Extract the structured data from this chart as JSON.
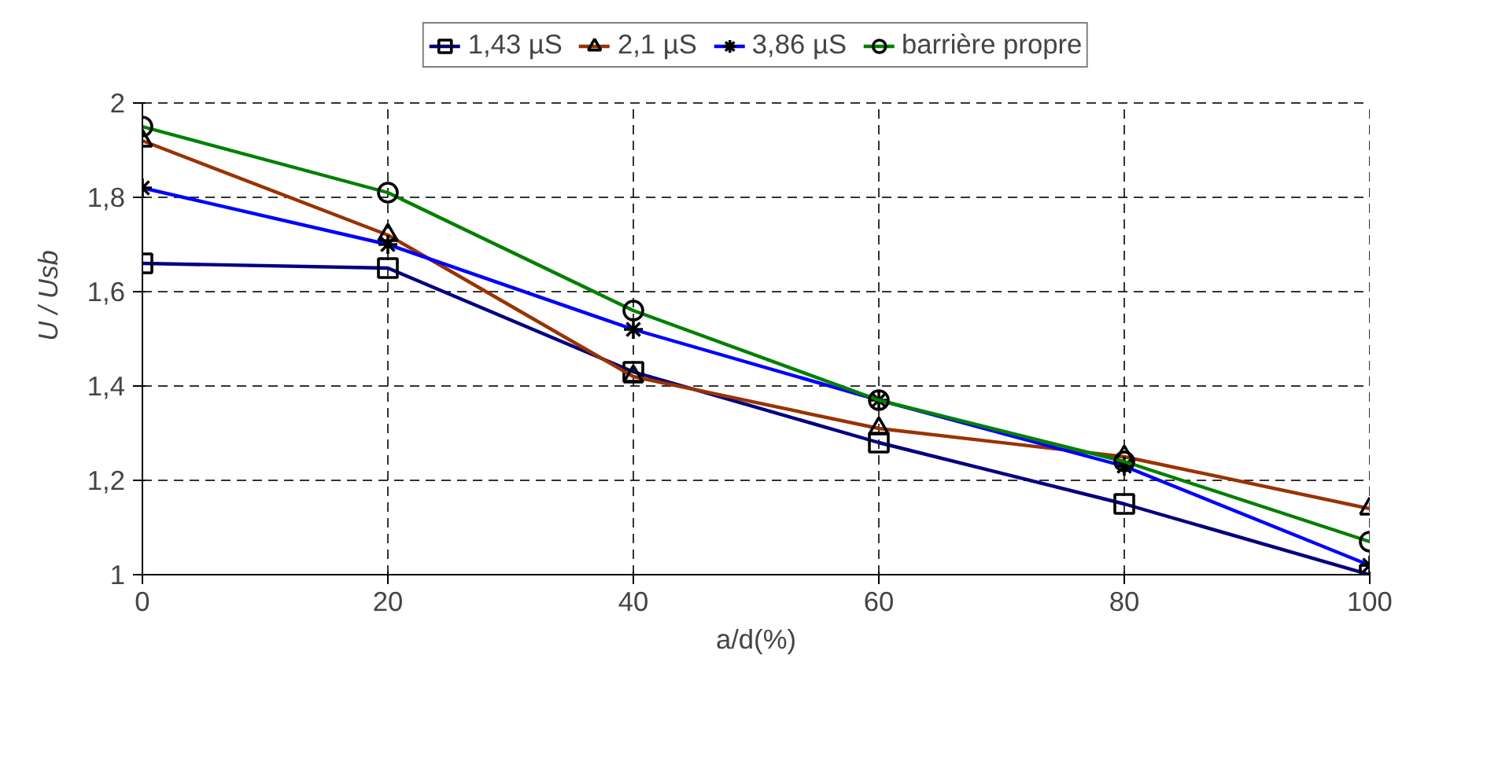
{
  "chart_data": {
    "type": "line",
    "xlabel": "a/d(%)",
    "ylabel": "U / Usb",
    "x": [
      0,
      20,
      40,
      60,
      80,
      100
    ],
    "series": [
      {
        "name": "1,43 µS",
        "color": "#000080",
        "marker": "square",
        "values": [
          1.66,
          1.65,
          1.43,
          1.28,
          1.15,
          1.0
        ]
      },
      {
        "name": "2,1 µS",
        "color": "#993300",
        "marker": "triangle",
        "values": [
          1.92,
          1.72,
          1.42,
          1.31,
          1.25,
          1.14
        ]
      },
      {
        "name": "3,86 µS",
        "color": "#0000ff",
        "marker": "cross",
        "values": [
          1.82,
          1.7,
          1.52,
          1.37,
          1.23,
          1.02
        ]
      },
      {
        "name": "barrière propre",
        "color": "#008000",
        "marker": "circle",
        "values": [
          1.95,
          1.81,
          1.56,
          1.37,
          1.24,
          1.07
        ]
      }
    ],
    "xlim": [
      0,
      100
    ],
    "xticks": [
      0,
      20,
      40,
      60,
      80,
      100
    ],
    "ylim": [
      1,
      2
    ],
    "yticks": [
      {
        "value": 1,
        "label": "1"
      },
      {
        "value": 1.2,
        "label": "1,2"
      },
      {
        "value": 1.4,
        "label": "1,4"
      },
      {
        "value": 1.6,
        "label": "1,6"
      },
      {
        "value": 1.8,
        "label": "1,8"
      },
      {
        "value": 2,
        "label": "2"
      }
    ],
    "grid": true,
    "legend": "top",
    "line_style": "solid"
  }
}
